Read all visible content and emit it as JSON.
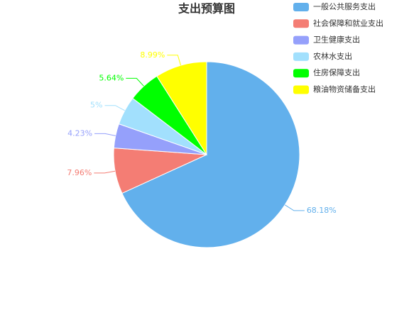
{
  "chart_data": {
    "type": "pie",
    "title": "支出预算图",
    "categories": [
      "一般公共服务支出",
      "社会保障和就业支出",
      "卫生健康支出",
      "农林水支出",
      "住房保障支出",
      "粮油物资储备支出"
    ],
    "values": [
      68.18,
      7.96,
      4.23,
      5,
      5.64,
      8.99
    ],
    "value_labels": [
      "68.18%",
      "7.96%",
      "4.23%",
      "5%",
      "5.64%",
      "8.99%"
    ],
    "colors": [
      "#62b0ec",
      "#f47d74",
      "#95a0fb",
      "#a2e0fd",
      "#00ff00",
      "#ffff00"
    ],
    "legend": "top-right"
  }
}
